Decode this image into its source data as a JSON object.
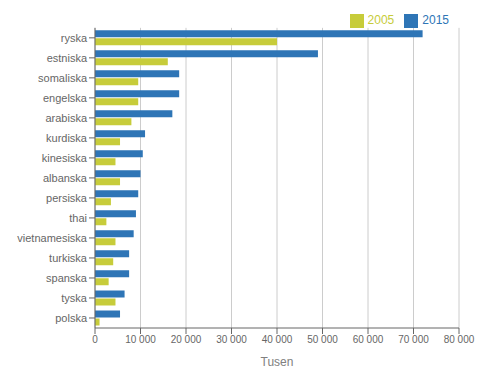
{
  "chart_data": {
    "type": "bar",
    "orientation": "horizontal",
    "categories": [
      "ryska",
      "estniska",
      "somaliska",
      "engelska",
      "arabiska",
      "kurdiska",
      "kinesiska",
      "albanska",
      "persiska",
      "thai",
      "vietnamesiska",
      "turkiska",
      "spanska",
      "tyska",
      "polska"
    ],
    "series": [
      {
        "name": "2015",
        "color": "#2E75B6",
        "values": [
          72000,
          49000,
          18500,
          18500,
          17000,
          11000,
          10500,
          10000,
          9500,
          9000,
          8500,
          7500,
          7500,
          6500,
          5500
        ]
      },
      {
        "name": "2005",
        "color": "#C7CC3A",
        "values": [
          40000,
          16000,
          9500,
          9500,
          8000,
          5500,
          4500,
          5500,
          3500,
          2500,
          4500,
          4000,
          3000,
          4500,
          1000
        ]
      }
    ],
    "xlabel": "Tusen",
    "xlim": [
      0,
      80000
    ],
    "xticks": [
      0,
      {
        "value": 10000,
        "label": "10 000"
      },
      {
        "value": 20000,
        "label": "20 000"
      },
      {
        "value": 30000,
        "label": "30 000"
      },
      {
        "value": 40000,
        "label": "40 000"
      },
      {
        "value": 50000,
        "label": "50 000"
      },
      {
        "value": 60000,
        "label": "60 000"
      },
      {
        "value": 70000,
        "label": "70 000"
      },
      {
        "value": 80000,
        "label": "80 000"
      }
    ],
    "grid": true,
    "legend": "upper right"
  }
}
